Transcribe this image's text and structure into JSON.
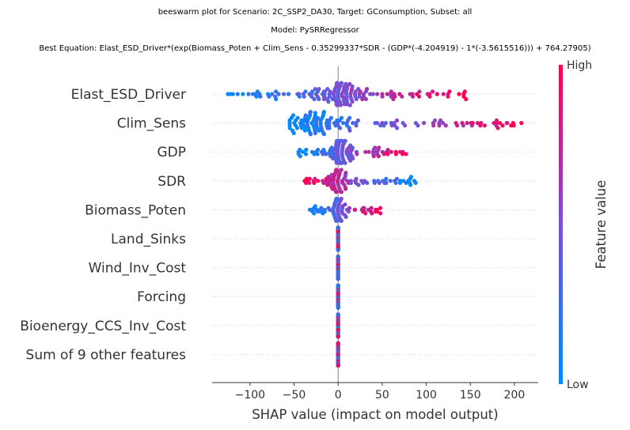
{
  "title": {
    "line1": "beeswarm plot for Scenario: 2C_SSP2_DA30, Target: GConsumption, Subset: all",
    "line2": "Model: PySRRegressor",
    "line3": "Best Equation: Elast_ESD_Driver*(exp(Biomass_Poten + Clim_Sens - 0.35299337*SDR - (GDP*(-4.204919) - 1*(-3.5615516))) + 764.27905)"
  },
  "chart_data": {
    "type": "scatter",
    "subtype": "beeswarm",
    "xlabel": "SHAP value (impact on model output)",
    "xlim": [
      -143,
      227
    ],
    "xticks": [
      -100,
      -50,
      0,
      50,
      100,
      150,
      200
    ],
    "xtick_labels": [
      "−100",
      "−50",
      "0",
      "50",
      "100",
      "150",
      "200"
    ],
    "features": [
      {
        "name": "Elast_ESD_Driver",
        "min": -125,
        "max": 145,
        "peak": 0,
        "spread": 1.0,
        "n": 150,
        "polarity": "positive"
      },
      {
        "name": "Clim_Sens",
        "min": -55,
        "max": 208,
        "peak": -25,
        "spread": 1.0,
        "n": 140,
        "polarity": "positive"
      },
      {
        "name": "GDP",
        "min": -45,
        "max": 77,
        "peak": 2,
        "spread": 0.85,
        "n": 110,
        "polarity": "positive"
      },
      {
        "name": "SDR",
        "min": -38,
        "max": 88,
        "peak": -2,
        "spread": 0.8,
        "n": 100,
        "polarity": "negative"
      },
      {
        "name": "Biomass_Poten",
        "min": -32,
        "max": 48,
        "peak": 0,
        "spread": 0.7,
        "n": 80,
        "polarity": "positive"
      },
      {
        "name": "Land_Sinks",
        "min": 0,
        "max": 0,
        "peak": 0,
        "spread": 0.35,
        "n": 40,
        "polarity": "mixed"
      },
      {
        "name": "Wind_Inv_Cost",
        "min": 0,
        "max": 0,
        "peak": 0,
        "spread": 0.35,
        "n": 40,
        "polarity": "mixed"
      },
      {
        "name": "Forcing",
        "min": 0,
        "max": 0,
        "peak": 0,
        "spread": 0.35,
        "n": 40,
        "polarity": "mixed"
      },
      {
        "name": "Bioenergy_CCS_Inv_Cost",
        "min": 0,
        "max": 0,
        "peak": 0,
        "spread": 0.35,
        "n": 40,
        "polarity": "mixed"
      },
      {
        "name": "Sum of 9 other features",
        "min": 0,
        "max": 0,
        "peak": 0,
        "spread": 0.35,
        "n": 40,
        "polarity": "mixed"
      }
    ],
    "colorbar": {
      "label": "Feature value",
      "high_label": "High",
      "low_label": "Low",
      "high_color": "#ff0052",
      "low_color": "#008bfb"
    },
    "zero_line_color": "#999999",
    "grid": "dotted horizontal per feature"
  }
}
